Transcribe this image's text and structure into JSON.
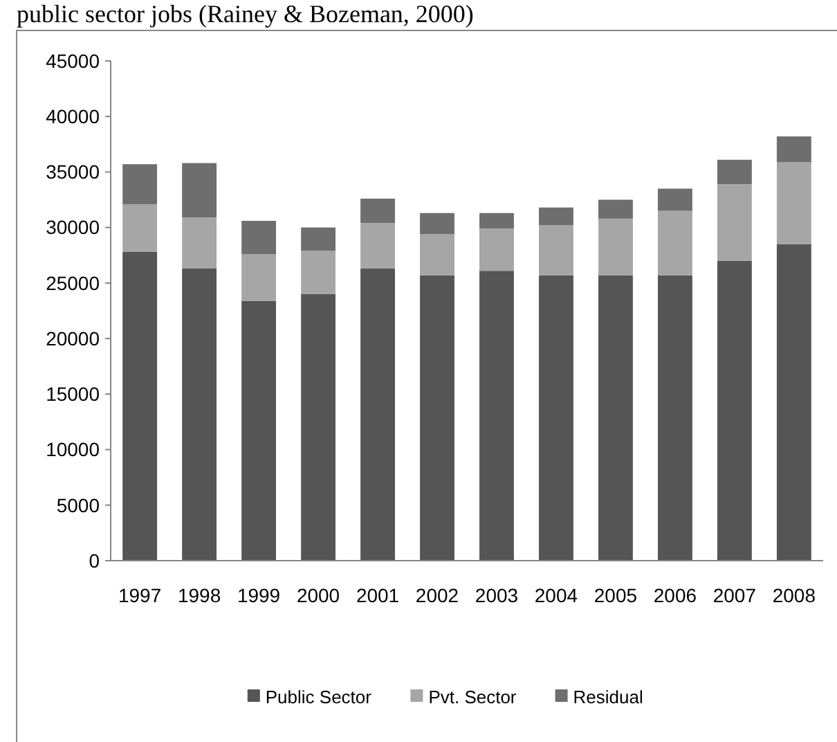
{
  "chart_data": {
    "type": "bar",
    "title": "public sector jobs (Rainey & Bozeman, 2000)",
    "stacked": true,
    "categories": [
      "1997",
      "1998",
      "1999",
      "2000",
      "2001",
      "2002",
      "2003",
      "2004",
      "2005",
      "2006",
      "2007",
      "2008"
    ],
    "series": [
      {
        "name": "Public Sector",
        "color": "#555555",
        "values": [
          27800,
          26300,
          23400,
          24000,
          26300,
          25700,
          26100,
          25700,
          25700,
          25700,
          27000,
          28500
        ]
      },
      {
        "name": "Pvt. Sector",
        "color": "#a6a6a6",
        "values": [
          4300,
          4600,
          4200,
          3900,
          4100,
          3700,
          3800,
          4500,
          5100,
          5800,
          6900,
          7400
        ]
      },
      {
        "name": "Residual",
        "color": "#6e6e6e",
        "values": [
          3600,
          4900,
          3000,
          2100,
          2200,
          1900,
          1400,
          1600,
          1700,
          2000,
          2200,
          2300
        ]
      }
    ],
    "ylim": [
      0,
      45000
    ],
    "yticks": [
      0,
      5000,
      10000,
      15000,
      20000,
      25000,
      30000,
      35000,
      40000,
      45000
    ],
    "grid": false,
    "legend": "bottom"
  }
}
